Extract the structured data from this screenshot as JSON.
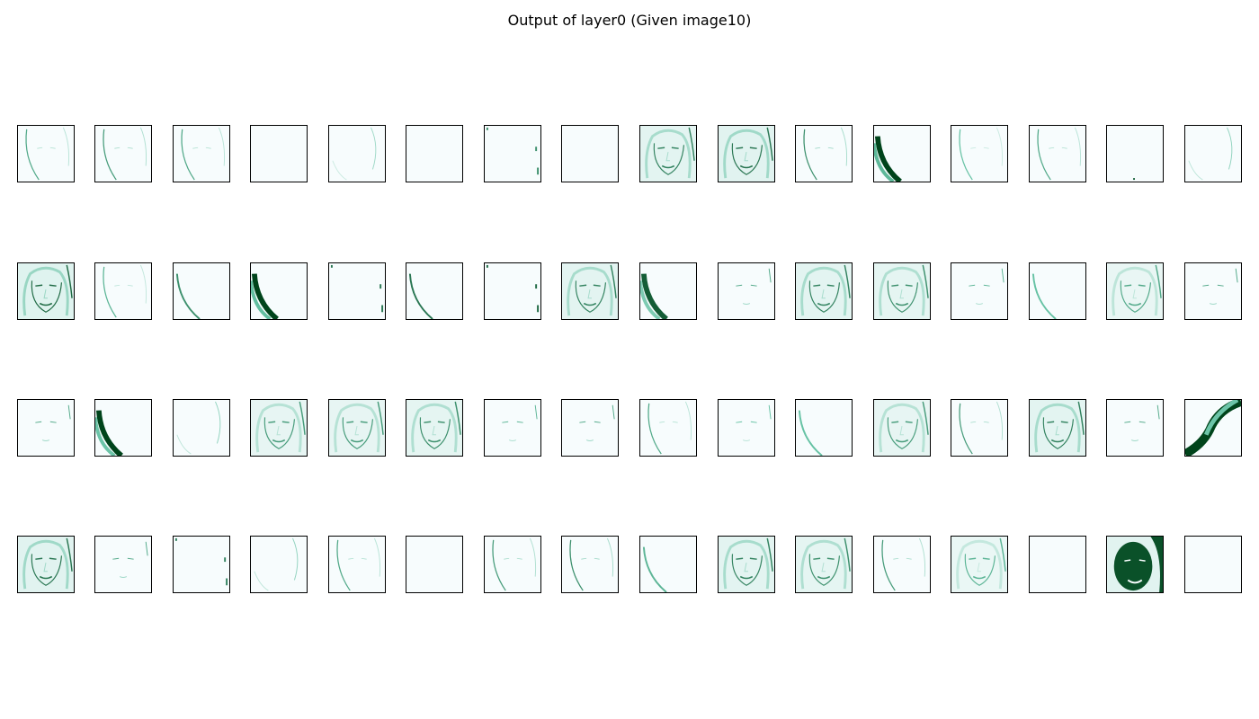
{
  "figure": {
    "title": "Output of layer0 (Given image10)"
  },
  "colors": {
    "background": "#ffffff",
    "map_low": "#f7fcfd",
    "map_mid": "#66c2a4",
    "map_high": "#00441b",
    "frame": "#000000"
  },
  "grid": {
    "rows": 4,
    "cols": 16,
    "tiles": [
      {
        "row": 0,
        "col": 0,
        "pattern": "face-edge",
        "intensity": 0.35
      },
      {
        "row": 0,
        "col": 1,
        "pattern": "face-edge",
        "intensity": 0.4
      },
      {
        "row": 0,
        "col": 2,
        "pattern": "face-edge",
        "intensity": 0.35
      },
      {
        "row": 0,
        "col": 3,
        "pattern": "blank",
        "intensity": 0
      },
      {
        "row": 0,
        "col": 4,
        "pattern": "faint-edge",
        "intensity": 0.15
      },
      {
        "row": 0,
        "col": 5,
        "pattern": "blank",
        "intensity": 0
      },
      {
        "row": 0,
        "col": 6,
        "pattern": "right-dots",
        "intensity": 0.3
      },
      {
        "row": 0,
        "col": 7,
        "pattern": "blank",
        "intensity": 0
      },
      {
        "row": 0,
        "col": 8,
        "pattern": "face-full",
        "intensity": 0.55
      },
      {
        "row": 0,
        "col": 9,
        "pattern": "face-full",
        "intensity": 0.6
      },
      {
        "row": 0,
        "col": 10,
        "pattern": "face-edge",
        "intensity": 0.45
      },
      {
        "row": 0,
        "col": 11,
        "pattern": "left-curve-strong",
        "intensity": 0.9
      },
      {
        "row": 0,
        "col": 12,
        "pattern": "face-edge",
        "intensity": 0.25
      },
      {
        "row": 0,
        "col": 13,
        "pattern": "face-edge",
        "intensity": 0.35
      },
      {
        "row": 0,
        "col": 14,
        "pattern": "bottom-dot",
        "intensity": 0.2
      },
      {
        "row": 0,
        "col": 15,
        "pattern": "faint-edge",
        "intensity": 0.2
      },
      {
        "row": 1,
        "col": 0,
        "pattern": "face-full",
        "intensity": 0.65
      },
      {
        "row": 1,
        "col": 1,
        "pattern": "face-edge",
        "intensity": 0.3
      },
      {
        "row": 1,
        "col": 2,
        "pattern": "left-curve",
        "intensity": 0.5
      },
      {
        "row": 1,
        "col": 3,
        "pattern": "left-curve-strong",
        "intensity": 0.85
      },
      {
        "row": 1,
        "col": 4,
        "pattern": "right-dots",
        "intensity": 0.4
      },
      {
        "row": 1,
        "col": 5,
        "pattern": "left-curve",
        "intensity": 0.6
      },
      {
        "row": 1,
        "col": 6,
        "pattern": "right-dots",
        "intensity": 0.45
      },
      {
        "row": 1,
        "col": 7,
        "pattern": "face-full",
        "intensity": 0.55
      },
      {
        "row": 1,
        "col": 8,
        "pattern": "left-curve-strong",
        "intensity": 0.7
      },
      {
        "row": 1,
        "col": 9,
        "pattern": "face-features",
        "intensity": 0.3
      },
      {
        "row": 1,
        "col": 10,
        "pattern": "face-full",
        "intensity": 0.55
      },
      {
        "row": 1,
        "col": 11,
        "pattern": "face-full",
        "intensity": 0.5
      },
      {
        "row": 1,
        "col": 12,
        "pattern": "face-features",
        "intensity": 0.25
      },
      {
        "row": 1,
        "col": 13,
        "pattern": "left-curve",
        "intensity": 0.3
      },
      {
        "row": 1,
        "col": 14,
        "pattern": "face-full",
        "intensity": 0.4
      },
      {
        "row": 1,
        "col": 15,
        "pattern": "face-features",
        "intensity": 0.3
      },
      {
        "row": 2,
        "col": 0,
        "pattern": "face-features",
        "intensity": 0.3
      },
      {
        "row": 2,
        "col": 1,
        "pattern": "left-curve-strong",
        "intensity": 0.8
      },
      {
        "row": 2,
        "col": 2,
        "pattern": "faint-edge",
        "intensity": 0.2
      },
      {
        "row": 2,
        "col": 3,
        "pattern": "face-full",
        "intensity": 0.45
      },
      {
        "row": 2,
        "col": 4,
        "pattern": "face-full",
        "intensity": 0.45
      },
      {
        "row": 2,
        "col": 5,
        "pattern": "face-full",
        "intensity": 0.5
      },
      {
        "row": 2,
        "col": 6,
        "pattern": "face-features",
        "intensity": 0.25
      },
      {
        "row": 2,
        "col": 7,
        "pattern": "face-features",
        "intensity": 0.3
      },
      {
        "row": 2,
        "col": 8,
        "pattern": "face-edge",
        "intensity": 0.35
      },
      {
        "row": 2,
        "col": 9,
        "pattern": "face-features",
        "intensity": 0.2
      },
      {
        "row": 2,
        "col": 10,
        "pattern": "left-curve",
        "intensity": 0.3
      },
      {
        "row": 2,
        "col": 11,
        "pattern": "face-full",
        "intensity": 0.45
      },
      {
        "row": 2,
        "col": 12,
        "pattern": "face-edge",
        "intensity": 0.4
      },
      {
        "row": 2,
        "col": 13,
        "pattern": "face-full",
        "intensity": 0.55
      },
      {
        "row": 2,
        "col": 14,
        "pattern": "face-features",
        "intensity": 0.3
      },
      {
        "row": 2,
        "col": 15,
        "pattern": "right-curve-strong",
        "intensity": 0.8
      },
      {
        "row": 3,
        "col": 0,
        "pattern": "face-full",
        "intensity": 0.6
      },
      {
        "row": 3,
        "col": 1,
        "pattern": "face-features",
        "intensity": 0.3
      },
      {
        "row": 3,
        "col": 2,
        "pattern": "right-dots",
        "intensity": 0.35
      },
      {
        "row": 3,
        "col": 3,
        "pattern": "faint-edge",
        "intensity": 0.2
      },
      {
        "row": 3,
        "col": 4,
        "pattern": "face-edge",
        "intensity": 0.35
      },
      {
        "row": 3,
        "col": 5,
        "pattern": "blank",
        "intensity": 0
      },
      {
        "row": 3,
        "col": 6,
        "pattern": "face-edge",
        "intensity": 0.4
      },
      {
        "row": 3,
        "col": 7,
        "pattern": "face-edge",
        "intensity": 0.45
      },
      {
        "row": 3,
        "col": 8,
        "pattern": "left-curve",
        "intensity": 0.35
      },
      {
        "row": 3,
        "col": 9,
        "pattern": "face-full",
        "intensity": 0.55
      },
      {
        "row": 3,
        "col": 10,
        "pattern": "face-full",
        "intensity": 0.5
      },
      {
        "row": 3,
        "col": 11,
        "pattern": "face-edge",
        "intensity": 0.4
      },
      {
        "row": 3,
        "col": 12,
        "pattern": "face-full",
        "intensity": 0.35
      },
      {
        "row": 3,
        "col": 13,
        "pattern": "blank",
        "intensity": 0
      },
      {
        "row": 3,
        "col": 14,
        "pattern": "face-dark",
        "intensity": 0.95
      },
      {
        "row": 3,
        "col": 15,
        "pattern": "blank",
        "intensity": 0
      }
    ]
  }
}
